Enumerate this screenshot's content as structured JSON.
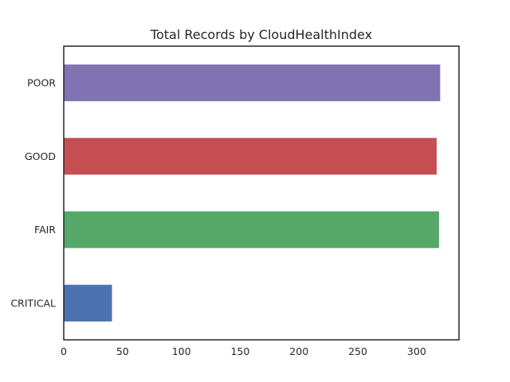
{
  "chart_data": {
    "type": "bar",
    "orientation": "horizontal",
    "title": "Total Records by CloudHealthIndex",
    "xlabel": "",
    "ylabel": "",
    "categories": [
      "CRITICAL",
      "FAIR",
      "GOOD",
      "POOR"
    ],
    "values": [
      41,
      319,
      317,
      320
    ],
    "colors": [
      "#4c72b0",
      "#55a868",
      "#c44e52",
      "#8172b2"
    ],
    "xlim": [
      0,
      336
    ],
    "xticks": [
      0,
      50,
      100,
      150,
      200,
      250,
      300
    ],
    "grid": false,
    "legend": "none"
  }
}
